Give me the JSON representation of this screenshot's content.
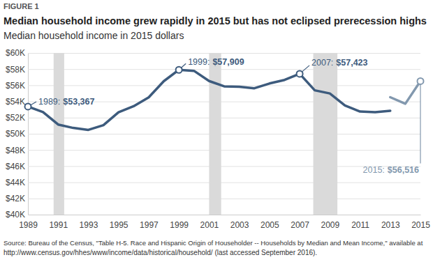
{
  "chart_data": {
    "type": "line",
    "label": "FIGURE 1",
    "title": "Median household income grew rapidly in 2015 but has not eclipsed prerecession highs",
    "subtitle": "Median household income in 2015 dollars",
    "x": [
      1989,
      1990,
      1991,
      1992,
      1993,
      1994,
      1995,
      1996,
      1997,
      1998,
      1999,
      2000,
      2001,
      2002,
      2003,
      2004,
      2005,
      2006,
      2007,
      2008,
      2009,
      2010,
      2011,
      2012,
      2013,
      2014,
      2015
    ],
    "series": [
      {
        "color": "#3d5b7d",
        "values": [
          53367,
          52684,
          51145,
          50725,
          50478,
          51065,
          52664,
          53407,
          54506,
          56510,
          57909,
          57790,
          56531,
          55871,
          55823,
          55629,
          56224,
          56663,
          57423,
          55376,
          54988,
          53507,
          52751,
          52666,
          52850,
          null,
          null
        ]
      },
      {
        "color": "#8298ae",
        "values": [
          null,
          null,
          null,
          null,
          null,
          null,
          null,
          null,
          null,
          null,
          null,
          null,
          null,
          null,
          null,
          null,
          null,
          null,
          null,
          null,
          null,
          null,
          null,
          null,
          54525,
          53718,
          56516
        ]
      }
    ],
    "xlim": [
      1989,
      2015
    ],
    "xticks": [
      1989,
      1991,
      1993,
      1995,
      1997,
      1999,
      2001,
      2003,
      2005,
      2007,
      2009,
      2011,
      2013,
      2015
    ],
    "ylim": [
      40000,
      60000
    ],
    "yticks": [
      {
        "value": 40000,
        "label": "$40K"
      },
      {
        "value": 42000,
        "label": "$42K"
      },
      {
        "value": 44000,
        "label": "$44K"
      },
      {
        "value": 46000,
        "label": "$46K"
      },
      {
        "value": 48000,
        "label": "$48K"
      },
      {
        "value": 50000,
        "label": "$50K"
      },
      {
        "value": 52000,
        "label": "$52K"
      },
      {
        "value": 54000,
        "label": "$54K"
      },
      {
        "value": 56000,
        "label": "$56K"
      },
      {
        "value": 58000,
        "label": "$58K"
      },
      {
        "value": 60000,
        "label": "$60K"
      }
    ],
    "grid": true,
    "shaded_ranges": [
      [
        1990.7,
        1991.4
      ],
      [
        2001,
        2001.8
      ],
      [
        2007.9,
        2009.5
      ]
    ],
    "annotations": [
      {
        "x": 1989,
        "y": 53367,
        "label": "1989:",
        "value_label": "$53,367"
      },
      {
        "x": 1999,
        "y": 57909,
        "label": "1999:",
        "value_label": "$57,909"
      },
      {
        "x": 2007,
        "y": 57423,
        "label": "2007:",
        "value_label": "$57,423"
      },
      {
        "x": 2015,
        "y": 56516,
        "label": "2015:",
        "value_label": "$56,516"
      }
    ],
    "source": [
      "Source: Bureau of the Census, \"Table H-5. Race and Hispanic Origin of Householder -- Households by Median and Mean Income,\" available at",
      "http://www.census.gov/hhes/www/income/data/historical/household/ (last accessed September 2016)."
    ]
  }
}
